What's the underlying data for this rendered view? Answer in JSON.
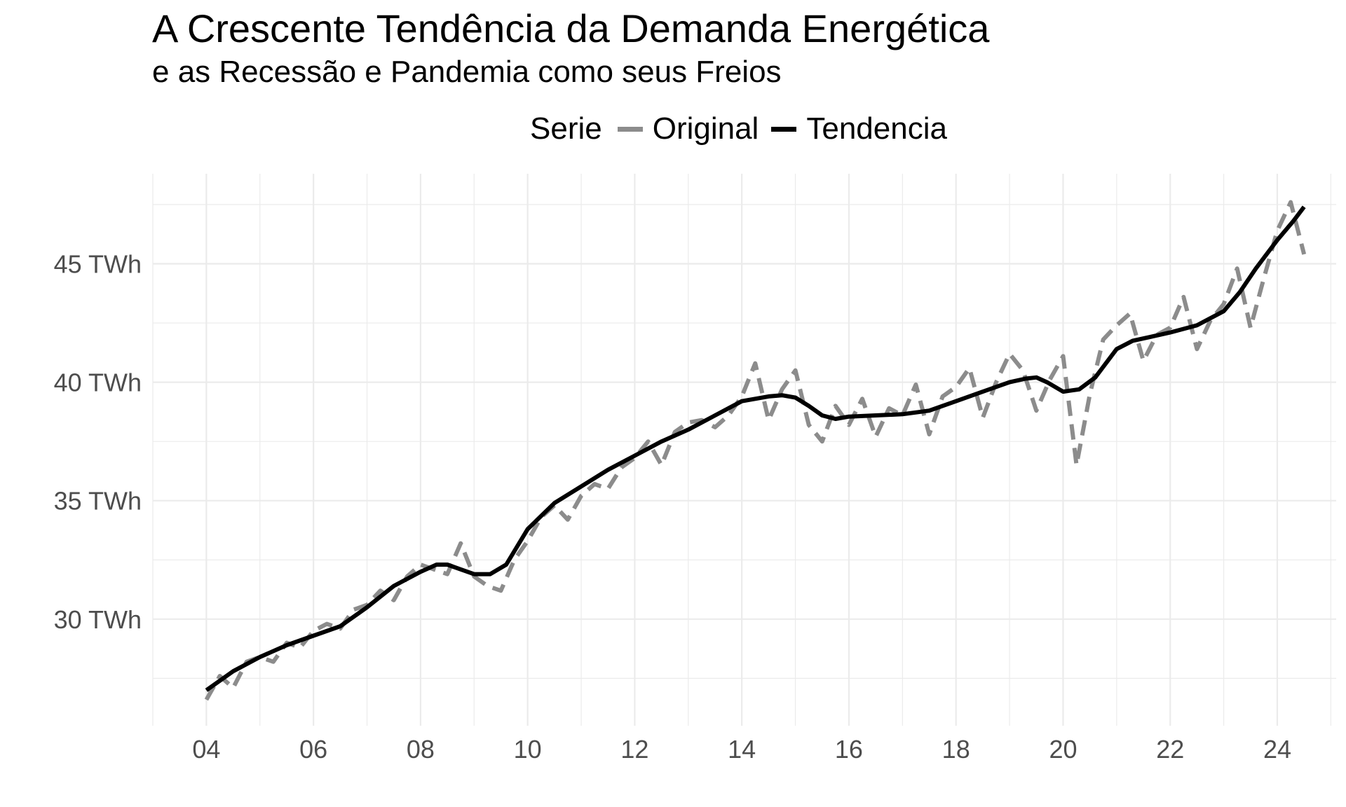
{
  "chart_data": {
    "type": "line",
    "title": "A Crescente Tendência da Demanda Energética",
    "subtitle": "e as Recessão e Pandemia como seus Freios",
    "xlabel": "",
    "ylabel": "",
    "x_tick_labels": [
      "04",
      "06",
      "08",
      "10",
      "12",
      "14",
      "16",
      "18",
      "20",
      "22",
      "24"
    ],
    "x_ticks": [
      2004,
      2006,
      2008,
      2010,
      2012,
      2014,
      2016,
      2018,
      2020,
      2022,
      2024
    ],
    "y_tick_labels": [
      "30 TWh",
      "35 TWh",
      "40 TWh",
      "45 TWh"
    ],
    "y_ticks": [
      30,
      35,
      40,
      45
    ],
    "xlim": [
      2003,
      2025.1
    ],
    "ylim": [
      25.5,
      48.8
    ],
    "grid": true,
    "legend": {
      "title": "Serie",
      "position": "top",
      "entries": [
        "Original",
        "Tendencia"
      ]
    },
    "colors": {
      "original": "#8c8c8c",
      "trend": "#000000",
      "grid": "#ebebeb"
    },
    "series": [
      {
        "name": "Original",
        "style": "dashed",
        "x": [
          2004.0,
          2004.25,
          2004.5,
          2004.75,
          2005.0,
          2005.25,
          2005.5,
          2005.75,
          2006.0,
          2006.25,
          2006.5,
          2006.75,
          2007.0,
          2007.25,
          2007.5,
          2007.75,
          2008.0,
          2008.25,
          2008.5,
          2008.75,
          2009.0,
          2009.25,
          2009.5,
          2009.75,
          2010.0,
          2010.25,
          2010.5,
          2010.75,
          2011.0,
          2011.25,
          2011.5,
          2011.75,
          2012.0,
          2012.25,
          2012.5,
          2012.75,
          2013.0,
          2013.25,
          2013.5,
          2013.75,
          2014.0,
          2014.25,
          2014.5,
          2014.75,
          2015.0,
          2015.25,
          2015.5,
          2015.75,
          2016.0,
          2016.25,
          2016.5,
          2016.75,
          2017.0,
          2017.25,
          2017.5,
          2017.75,
          2018.0,
          2018.25,
          2018.5,
          2018.75,
          2019.0,
          2019.25,
          2019.5,
          2019.75,
          2020.0,
          2020.25,
          2020.5,
          2020.75,
          2021.0,
          2021.25,
          2021.5,
          2021.75,
          2022.0,
          2022.25,
          2022.5,
          2022.75,
          2023.0,
          2023.25,
          2023.5,
          2023.75,
          2024.0,
          2024.25,
          2024.5
        ],
        "values": [
          26.6,
          27.6,
          27.1,
          28.2,
          28.4,
          28.2,
          29.0,
          28.8,
          29.5,
          29.8,
          29.6,
          30.4,
          30.6,
          31.2,
          30.8,
          31.8,
          32.3,
          32.1,
          31.9,
          33.2,
          31.8,
          31.4,
          31.2,
          32.5,
          33.3,
          34.3,
          34.8,
          34.2,
          35.2,
          35.7,
          35.5,
          36.4,
          36.8,
          37.5,
          36.5,
          37.9,
          38.3,
          38.4,
          38.1,
          38.6,
          39.4,
          40.8,
          38.4,
          39.7,
          40.5,
          38.2,
          37.5,
          39.0,
          38.2,
          39.3,
          37.7,
          38.9,
          38.6,
          39.9,
          37.8,
          39.4,
          39.8,
          40.6,
          38.5,
          40.0,
          41.2,
          40.5,
          38.8,
          40.1,
          41.1,
          36.5,
          39.5,
          41.8,
          42.4,
          42.9,
          40.9,
          42.0,
          42.3,
          43.6,
          41.4,
          42.6,
          43.3,
          44.8,
          42.3,
          44.4,
          46.4,
          47.6,
          45.4
        ]
      },
      {
        "name": "Tendencia",
        "style": "solid",
        "x": [
          2004.0,
          2004.5,
          2005.0,
          2005.5,
          2006.0,
          2006.5,
          2007.0,
          2007.5,
          2008.0,
          2008.3,
          2008.5,
          2008.75,
          2009.0,
          2009.3,
          2009.6,
          2010.0,
          2010.5,
          2011.0,
          2011.5,
          2012.0,
          2012.5,
          2013.0,
          2013.5,
          2014.0,
          2014.5,
          2014.75,
          2015.0,
          2015.25,
          2015.5,
          2015.75,
          2016.0,
          2016.5,
          2017.0,
          2017.5,
          2018.0,
          2018.5,
          2019.0,
          2019.3,
          2019.5,
          2019.7,
          2020.0,
          2020.3,
          2020.6,
          2021.0,
          2021.3,
          2021.6,
          2022.0,
          2022.5,
          2023.0,
          2023.3,
          2023.6,
          2024.0,
          2024.3,
          2024.5
        ],
        "values": [
          27.0,
          27.8,
          28.4,
          28.9,
          29.3,
          29.7,
          30.5,
          31.4,
          32.0,
          32.3,
          32.3,
          32.1,
          31.9,
          31.9,
          32.3,
          33.8,
          34.9,
          35.6,
          36.3,
          36.9,
          37.5,
          38.0,
          38.6,
          39.2,
          39.4,
          39.45,
          39.35,
          39.0,
          38.6,
          38.45,
          38.55,
          38.6,
          38.65,
          38.8,
          39.2,
          39.6,
          40.0,
          40.15,
          40.2,
          40.0,
          39.6,
          39.7,
          40.2,
          41.4,
          41.75,
          41.9,
          42.1,
          42.4,
          43.0,
          43.8,
          44.8,
          46.0,
          46.8,
          47.4
        ]
      }
    ]
  }
}
